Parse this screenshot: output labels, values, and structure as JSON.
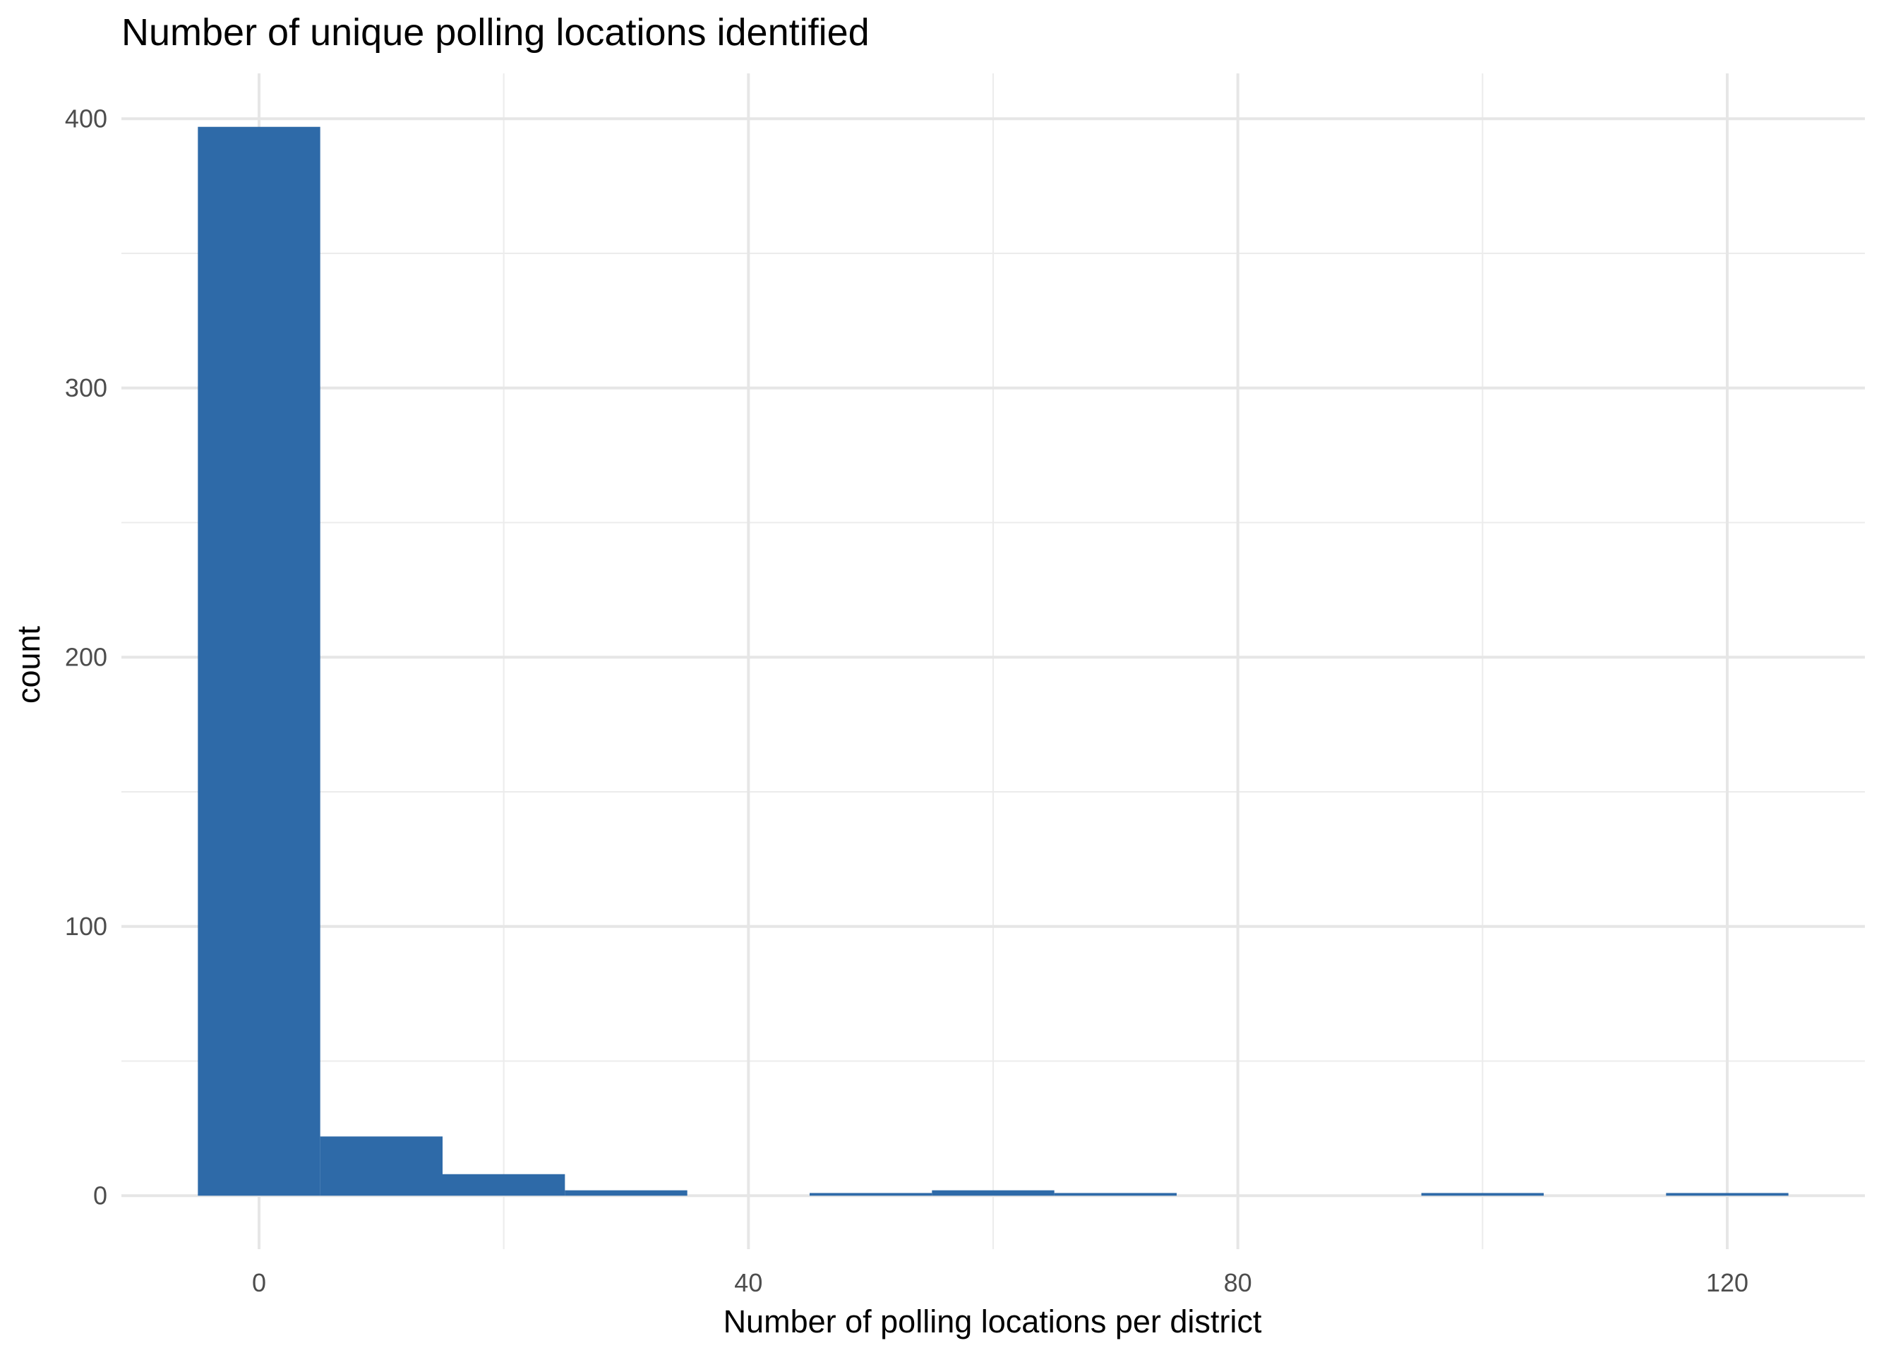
{
  "chart_data": {
    "type": "bar",
    "title": "Number of unique polling locations identified",
    "xlabel": "Number of polling locations per district",
    "ylabel": "count",
    "bin_width": 10,
    "bins": [
      {
        "x_start": -5,
        "x_end": 5,
        "count": 397
      },
      {
        "x_start": 5,
        "x_end": 15,
        "count": 22
      },
      {
        "x_start": 15,
        "x_end": 25,
        "count": 8
      },
      {
        "x_start": 25,
        "x_end": 35,
        "count": 2
      },
      {
        "x_start": 35,
        "x_end": 45,
        "count": 0
      },
      {
        "x_start": 45,
        "x_end": 55,
        "count": 1
      },
      {
        "x_start": 55,
        "x_end": 65,
        "count": 2
      },
      {
        "x_start": 65,
        "x_end": 75,
        "count": 1
      },
      {
        "x_start": 75,
        "x_end": 85,
        "count": 0
      },
      {
        "x_start": 85,
        "x_end": 95,
        "count": 0
      },
      {
        "x_start": 95,
        "x_end": 105,
        "count": 1
      },
      {
        "x_start": 105,
        "x_end": 115,
        "count": 0
      },
      {
        "x_start": 115,
        "x_end": 125,
        "count": 1
      }
    ],
    "xlim": [
      -11.25,
      131.25
    ],
    "ylim": [
      -19.85,
      416.85
    ],
    "x_ticks": [
      0,
      40,
      80,
      120
    ],
    "x_minor_ticks": [
      20,
      60,
      100
    ],
    "y_ticks": [
      0,
      100,
      200,
      300,
      400
    ],
    "y_minor_ticks": [
      50,
      150,
      250,
      350
    ],
    "bar_color": "#2e6aa8",
    "grid": true,
    "legend": "none"
  }
}
